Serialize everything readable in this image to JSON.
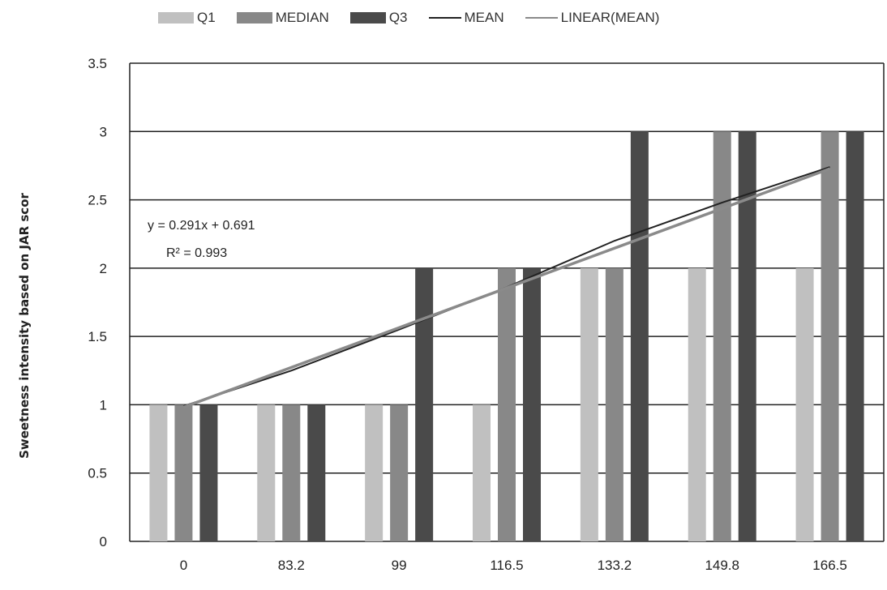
{
  "chart_data": {
    "type": "bar",
    "categories": [
      "0",
      "83.2",
      "99",
      "116.5",
      "133.2",
      "149.8",
      "166.5"
    ],
    "series": [
      {
        "name": "Q1",
        "kind": "bar",
        "color": "#c0c0c0",
        "values": [
          1,
          1,
          1,
          1,
          2,
          2,
          2
        ]
      },
      {
        "name": "MEDIAN",
        "kind": "bar",
        "color": "#888888",
        "values": [
          1,
          1,
          1,
          2,
          2,
          3,
          3
        ]
      },
      {
        "name": "Q3",
        "kind": "bar",
        "color": "#4a4a4a",
        "values": [
          1,
          1,
          2,
          2,
          3,
          3,
          3
        ]
      },
      {
        "name": "MEAN",
        "kind": "line",
        "color": "#222222",
        "values": [
          0.99,
          1.25,
          1.55,
          1.86,
          2.2,
          2.48,
          2.74
        ]
      },
      {
        "name": "LINEAR(MEAN)",
        "kind": "line",
        "color": "#8a8a8a",
        "values": [
          0.982,
          1.273,
          1.564,
          1.855,
          2.146,
          2.437,
          2.728
        ]
      }
    ],
    "trendline": {
      "equation": "y = 0.291x + 0.691",
      "r2": "R² = 0.993"
    },
    "ylabel": "Sweetness intensity based on JAR scor",
    "xlabel": "",
    "ylim": [
      0,
      3.5
    ],
    "yticks": [
      "0",
      "0.5",
      "1",
      "1.5",
      "2",
      "2.5",
      "3",
      "3.5"
    ],
    "grid": "horizontal",
    "legend_position": "top"
  }
}
